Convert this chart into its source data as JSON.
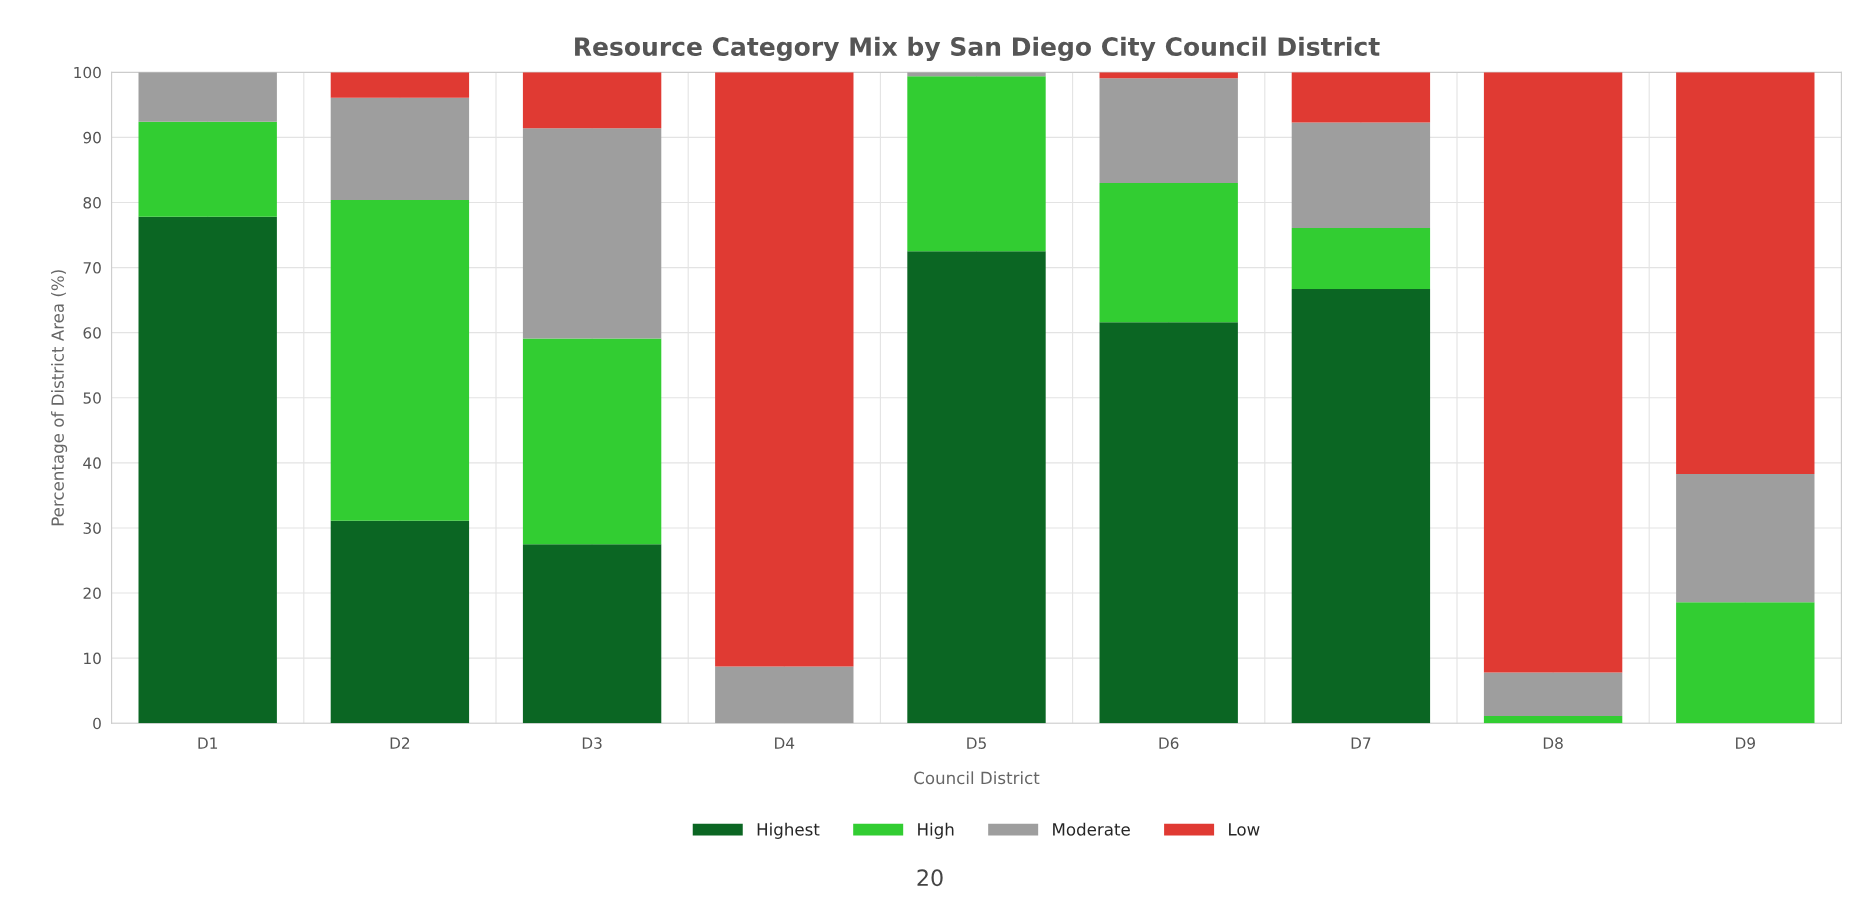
{
  "chart_data": {
    "type": "bar",
    "title": "Resource Category Mix by San Diego City Council District",
    "xlabel": "Council District",
    "ylabel": "Percentage of District Area (%)",
    "categories": [
      "D1",
      "D2",
      "D3",
      "D4",
      "D5",
      "D6",
      "D7",
      "D8",
      "D9"
    ],
    "stacked": true,
    "series": [
      {
        "name": "Highest",
        "color": "#0b6623",
        "values": [
          77.8,
          31.1,
          27.5,
          0,
          72.5,
          61.6,
          66.7,
          0,
          0
        ]
      },
      {
        "name": "High",
        "color": "#32cd32",
        "values": [
          14.6,
          49.3,
          31.6,
          0,
          26.9,
          21.4,
          9.4,
          1.1,
          18.6
        ]
      },
      {
        "name": "Moderate",
        "color": "#9e9e9e",
        "values": [
          7.6,
          15.7,
          32.3,
          8.7,
          0.6,
          16.1,
          16.2,
          6.7,
          19.7
        ]
      },
      {
        "name": "Low",
        "color": "#e03a33",
        "values": [
          0,
          3.9,
          8.6,
          91.3,
          0,
          0.9,
          7.7,
          92.2,
          61.7
        ]
      }
    ],
    "ylim": [
      0,
      100
    ],
    "yticks": [
      0,
      10,
      20,
      30,
      40,
      50,
      60,
      70,
      80,
      90,
      100
    ],
    "grid": true,
    "legend": "bottom",
    "annotations": [
      "20"
    ]
  }
}
